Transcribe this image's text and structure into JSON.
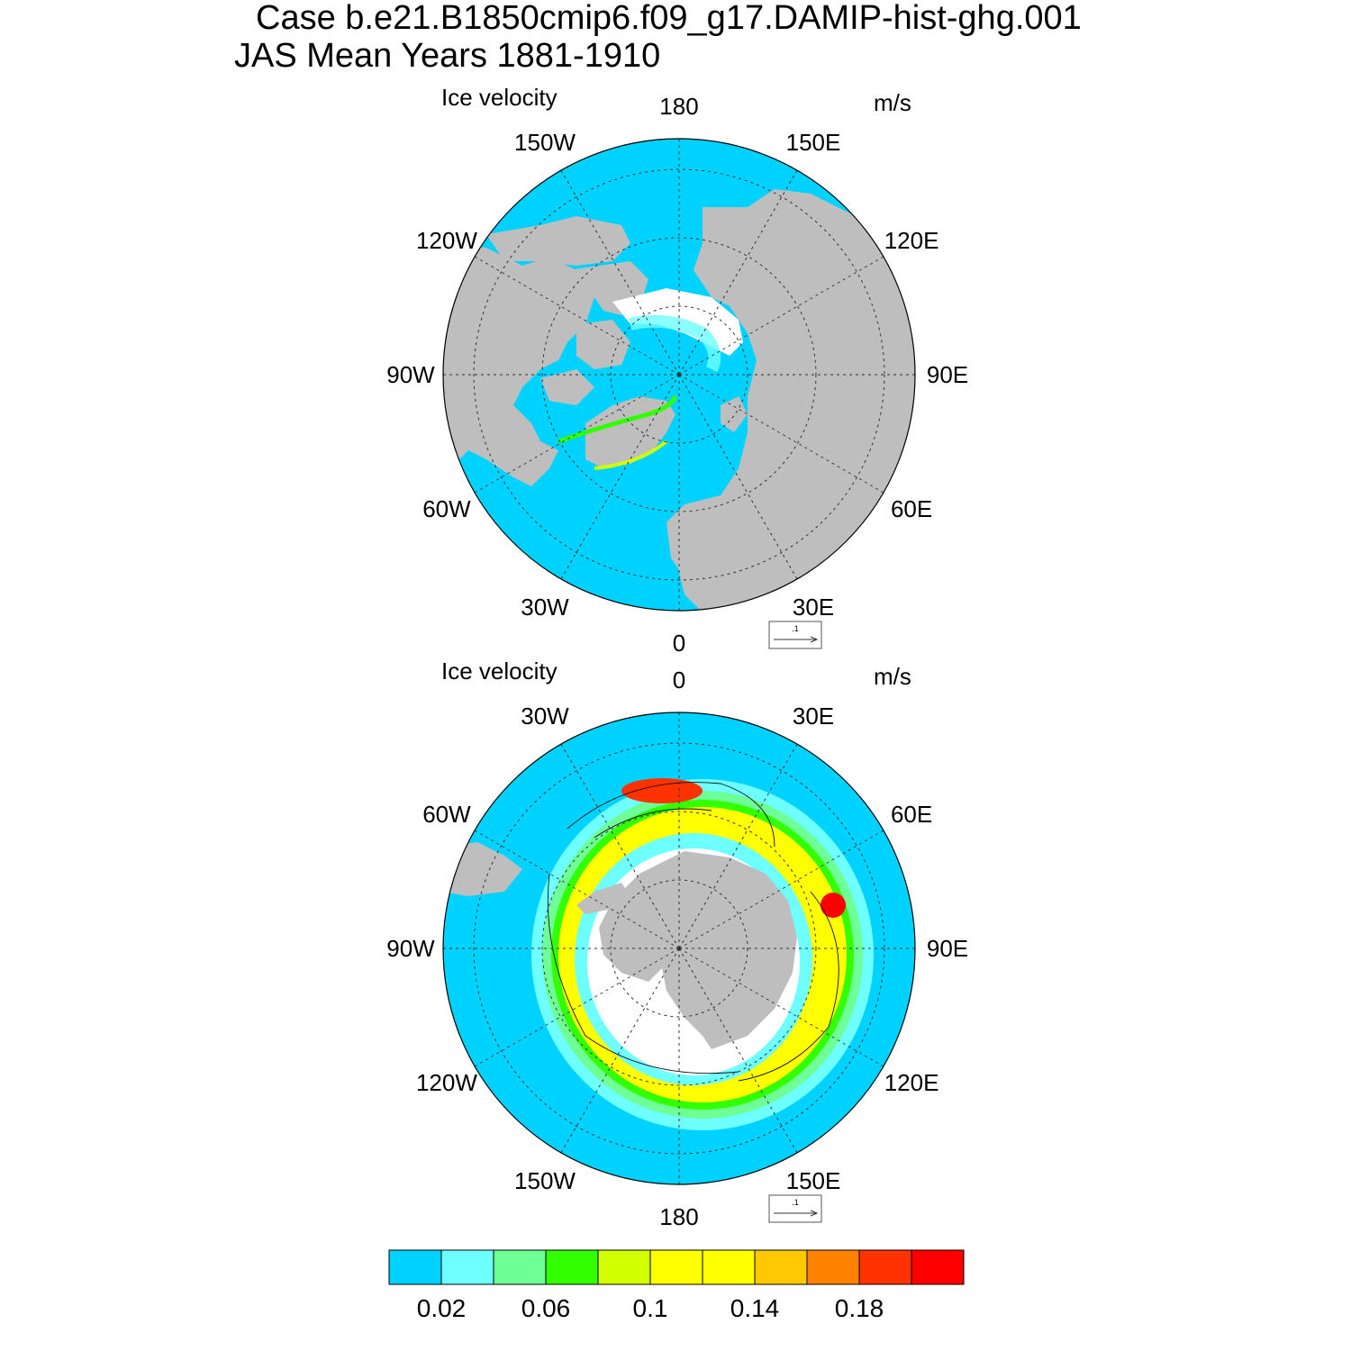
{
  "title": {
    "line1": "Case b.e21.B1850cmip6.f09_g17.DAMIP-hist-ghg.001",
    "line2": "JAS Mean   Years 1881-1910"
  },
  "panels": [
    {
      "id": "north",
      "hemisphere": "Northern",
      "label_left": "Ice velocity",
      "label_right": "m/s",
      "reference_vector_label": ".1",
      "lon_labels": [
        "180",
        "150E",
        "120E",
        "90E",
        "60E",
        "30E",
        "0",
        "30W",
        "60W",
        "90W",
        "120W",
        "150W"
      ]
    },
    {
      "id": "south",
      "hemisphere": "Southern",
      "label_left": "Ice velocity",
      "label_right": "m/s",
      "reference_vector_label": ".1",
      "lon_labels": [
        "0",
        "30E",
        "60E",
        "90E",
        "120E",
        "150E",
        "180",
        "150W",
        "120W",
        "90W",
        "60W",
        "30W"
      ]
    }
  ],
  "colorbar": {
    "colors": [
      "#00d2ff",
      "#6effff",
      "#6eff96",
      "#32ff00",
      "#d2ff00",
      "#ffff00",
      "#ffff00",
      "#ffc800",
      "#ff8200",
      "#ff3200",
      "#ff0000"
    ],
    "labels": [
      "0.02",
      "0.06",
      "0.1",
      "0.14",
      "0.18"
    ],
    "label_after_box_index": [
      0,
      2,
      4,
      6,
      8
    ]
  },
  "map_colors": {
    "ocean": "#00d2ff",
    "land": "#bebebe",
    "missing": "#ffffff"
  }
}
